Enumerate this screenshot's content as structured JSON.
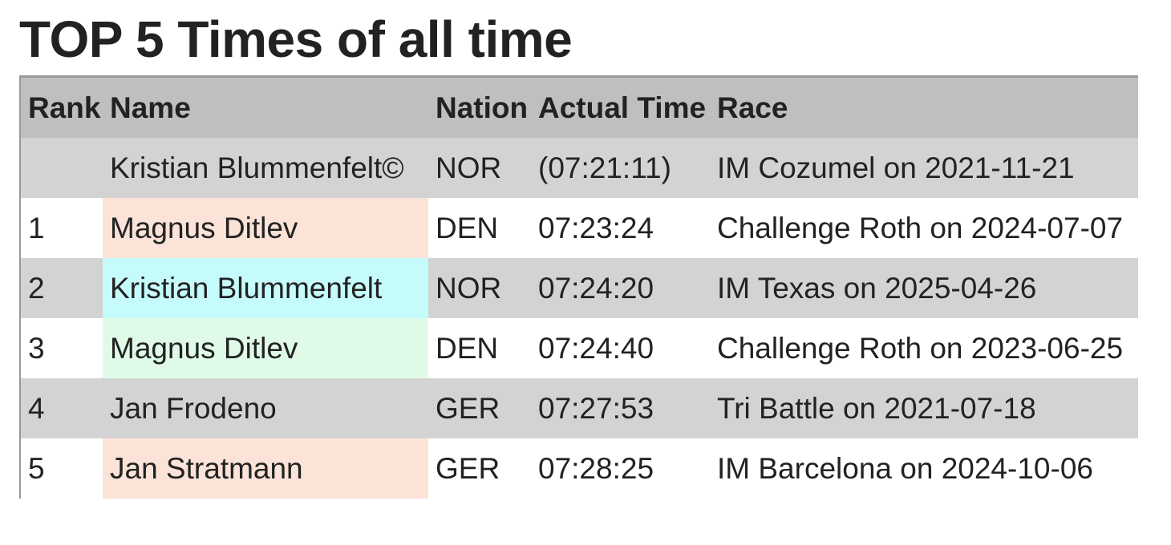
{
  "header": {
    "title": "TOP 5 Times of all time"
  },
  "table": {
    "columns": [
      "Rank",
      "Name",
      "Nation",
      "Actual Time",
      "Race"
    ],
    "rows": [
      {
        "name": "Kristian Blummenfelt©",
        "nation": "NOR",
        "time": "(07:21:11)",
        "race": "IM Cozumel on 2021-11-21"
      },
      {
        "rank": 1,
        "name": "Magnus Ditlev",
        "nation": "DEN",
        "time": "07:23:24",
        "race": "Challenge Roth on 2024-07-07"
      },
      {
        "rank": 2,
        "name": "Kristian Blummenfelt",
        "nation": "NOR",
        "time": "07:24:20",
        "race": "IM Texas on 2025-04-26"
      },
      {
        "rank": 3,
        "name": "Magnus Ditlev",
        "nation": "DEN",
        "time": "07:24:40",
        "race": "Challenge Roth on 2023-06-25"
      },
      {
        "rank": 4,
        "name": "Jan Frodeno",
        "nation": "GER",
        "time": "07:27:53",
        "race": "Tri Battle on 2021-07-18"
      },
      {
        "rank": 5,
        "name": "Jan Stratmann",
        "nation": "GER",
        "time": "07:28:25",
        "race": "IM Barcelona on 2024-10-06"
      }
    ]
  }
}
